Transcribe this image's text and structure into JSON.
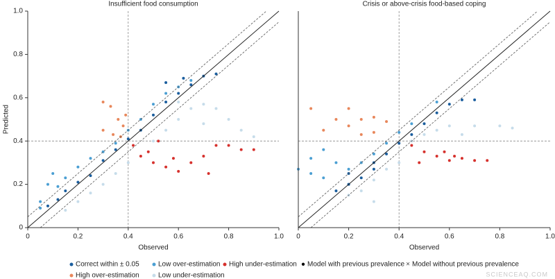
{
  "chart_data": [
    {
      "type": "scatter",
      "title": "Insufficient food consumption",
      "xlabel": "Observed",
      "ylabel": "Predicted",
      "xlim": [
        0,
        1
      ],
      "ylim": [
        0,
        1
      ],
      "xticks": [
        0,
        0.2,
        0.4,
        0.6,
        0.8,
        {
          "value": 1,
          "label": "1.0"
        }
      ],
      "yticks": [
        0,
        0.2,
        0.4,
        0.6,
        0.8,
        {
          "value": 1,
          "label": "1.0"
        }
      ],
      "reference_lines": {
        "x": 0.4,
        "y": 0.4
      },
      "identity_band": 0.05,
      "series": [
        {
          "name": "Low under-estimation",
          "color": "#c6dcea",
          "x": [
            0.15,
            0.2,
            0.25,
            0.3,
            0.35,
            0.4,
            0.5,
            0.55,
            0.6,
            0.65,
            0.7,
            0.75,
            0.8,
            0.85,
            0.9,
            0.7,
            0.6
          ],
          "y": [
            0.08,
            0.12,
            0.16,
            0.2,
            0.25,
            0.3,
            0.4,
            0.45,
            0.5,
            0.55,
            0.57,
            0.55,
            0.5,
            0.45,
            0.42,
            0.48,
            0.58
          ]
        },
        {
          "name": "Low over-estimation",
          "color": "#4b9fd3",
          "x": [
            0.05,
            0.08,
            0.1,
            0.15,
            0.2,
            0.25,
            0.3,
            0.35,
            0.4,
            0.45,
            0.5,
            0.55,
            0.6,
            0.65,
            0.05,
            0.12
          ],
          "y": [
            0.12,
            0.2,
            0.25,
            0.23,
            0.28,
            0.32,
            0.35,
            0.39,
            0.45,
            0.5,
            0.57,
            0.62,
            0.65,
            0.68,
            0.09,
            0.19
          ]
        },
        {
          "name": "Correct within ± 0.05",
          "color": "#1b5e9e",
          "x": [
            0.08,
            0.12,
            0.15,
            0.2,
            0.25,
            0.3,
            0.35,
            0.4,
            0.45,
            0.5,
            0.55,
            0.6,
            0.65,
            0.7,
            0.75,
            0.62,
            0.55
          ],
          "y": [
            0.1,
            0.13,
            0.17,
            0.21,
            0.24,
            0.31,
            0.36,
            0.41,
            0.45,
            0.52,
            0.58,
            0.62,
            0.66,
            0.7,
            0.71,
            0.69,
            0.67
          ]
        },
        {
          "name": "High under-estimation",
          "color": "#d6312d",
          "x": [
            0.42,
            0.45,
            0.5,
            0.55,
            0.6,
            0.65,
            0.7,
            0.75,
            0.8,
            0.85,
            0.9,
            0.48,
            0.58,
            0.72,
            0.52
          ],
          "y": [
            0.38,
            0.33,
            0.3,
            0.28,
            0.26,
            0.3,
            0.33,
            0.38,
            0.38,
            0.36,
            0.36,
            0.35,
            0.32,
            0.25,
            0.4
          ]
        },
        {
          "name": "High over-estimation",
          "color": "#e8875b",
          "x": [
            0.3,
            0.33,
            0.36,
            0.38,
            0.3,
            0.34,
            0.39,
            0.37
          ],
          "y": [
            0.58,
            0.56,
            0.5,
            0.47,
            0.45,
            0.43,
            0.52,
            0.42
          ]
        }
      ]
    },
    {
      "type": "scatter",
      "title": "Crisis or above-crisis food-based coping",
      "xlabel": "Observed",
      "xlim": [
        0,
        1
      ],
      "ylim": [
        0,
        1
      ],
      "xticks": [
        0,
        0.2,
        0.4,
        0.6,
        0.8,
        {
          "value": 1,
          "label": "1.0"
        }
      ],
      "reference_lines": {
        "x": 0.4,
        "y": 0.4
      },
      "identity_band": 0.05,
      "series": [
        {
          "name": "Low under-estimation",
          "color": "#c6dcea",
          "x": [
            0.2,
            0.25,
            0.3,
            0.35,
            0.4,
            0.5,
            0.55,
            0.6,
            0.7,
            0.8,
            0.85,
            0.65,
            0.45,
            0.3
          ],
          "y": [
            0.15,
            0.17,
            0.22,
            0.27,
            0.3,
            0.43,
            0.45,
            0.47,
            0.47,
            0.47,
            0.46,
            0.43,
            0.4,
            0.12
          ]
        },
        {
          "name": "Low over-estimation",
          "color": "#4b9fd3",
          "x": [
            0.0,
            0.05,
            0.1,
            0.15,
            0.2,
            0.25,
            0.3,
            0.35,
            0.1,
            0.2,
            0.05,
            0.4,
            0.45,
            0.55
          ],
          "y": [
            0.27,
            0.32,
            0.36,
            0.3,
            0.27,
            0.3,
            0.34,
            0.39,
            0.23,
            0.2,
            0.25,
            0.44,
            0.48,
            0.58
          ]
        },
        {
          "name": "Correct within ± 0.05",
          "color": "#1b5e9e",
          "x": [
            0.15,
            0.2,
            0.25,
            0.3,
            0.35,
            0.4,
            0.45,
            0.5,
            0.55,
            0.6,
            0.65,
            0.7,
            0.2,
            0.3
          ],
          "y": [
            0.17,
            0.2,
            0.23,
            0.3,
            0.34,
            0.39,
            0.43,
            0.48,
            0.53,
            0.57,
            0.59,
            0.59,
            0.25,
            0.27
          ]
        },
        {
          "name": "High under-estimation",
          "color": "#d6312d",
          "x": [
            0.45,
            0.5,
            0.55,
            0.6,
            0.65,
            0.7,
            0.75,
            0.48,
            0.58,
            0.62
          ],
          "y": [
            0.38,
            0.35,
            0.33,
            0.31,
            0.32,
            0.31,
            0.31,
            0.3,
            0.35,
            0.33
          ]
        },
        {
          "name": "High over-estimation",
          "color": "#e8875b",
          "x": [
            0.05,
            0.1,
            0.15,
            0.2,
            0.25,
            0.3,
            0.35,
            0.2,
            0.25,
            0.3
          ],
          "y": [
            0.55,
            0.45,
            0.5,
            0.47,
            0.5,
            0.51,
            0.49,
            0.55,
            0.43,
            0.44
          ]
        }
      ]
    }
  ],
  "legend": {
    "rows": [
      [
        {
          "series": 2
        },
        {
          "series": 1
        },
        {
          "series": 3
        },
        {
          "name": "Model with previous prevalence",
          "marker": "●",
          "color": "#000000"
        },
        {
          "name": "Model without previous prevalence",
          "marker": "×",
          "color": "#444444"
        }
      ],
      [
        {
          "series": 4
        },
        {
          "series": 0
        }
      ]
    ]
  },
  "watermark": "SCIENCEAQ.COM"
}
